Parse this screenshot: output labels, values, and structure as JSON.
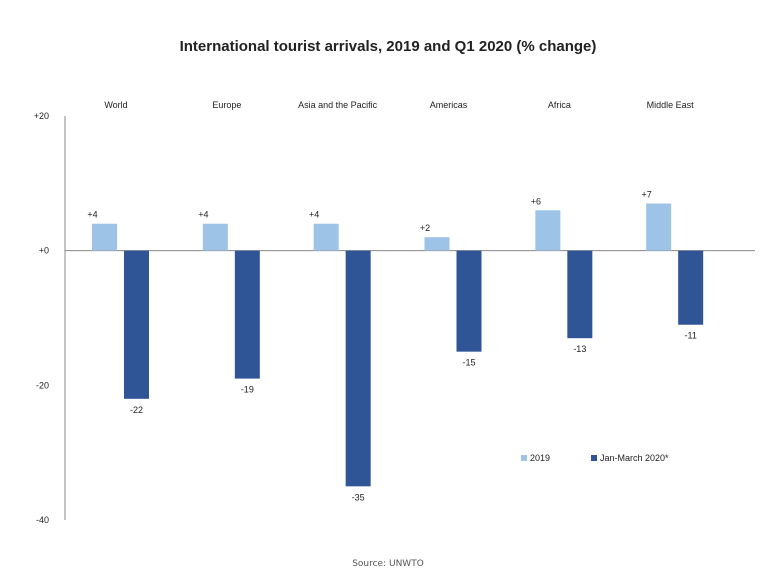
{
  "chart_data": {
    "type": "bar",
    "title": "International tourist arrivals, 2019 and Q1 2020 (% change)",
    "categories": [
      "World",
      "Europe",
      "Asia and the Pacific",
      "Americas",
      "Africa",
      "Middle East"
    ],
    "series": [
      {
        "name": "2019",
        "values": [
          4,
          4,
          4,
          2,
          6,
          7
        ],
        "data_labels": [
          "+4",
          "+4",
          "+4",
          "+2",
          "+6",
          "+7"
        ],
        "color": "#9dc3e6"
      },
      {
        "name": "Jan-March 2020*",
        "values": [
          -22,
          -19,
          -35,
          -15,
          -13,
          -11
        ],
        "data_labels": [
          "-22",
          "-19",
          "-35",
          "-15",
          "-13",
          "-11"
        ],
        "color": "#2f5597"
      }
    ],
    "yticks": [
      {
        "value": 20,
        "label": "+20"
      },
      {
        "value": 0,
        "label": "+0"
      },
      {
        "value": -20,
        "label": "-20"
      },
      {
        "value": -40,
        "label": "-40"
      }
    ],
    "ylim": [
      -40,
      20
    ],
    "xlabel": "",
    "ylabel": "",
    "legend_position": "bottom-right",
    "grid": false,
    "source": "Source: UNWTO"
  }
}
